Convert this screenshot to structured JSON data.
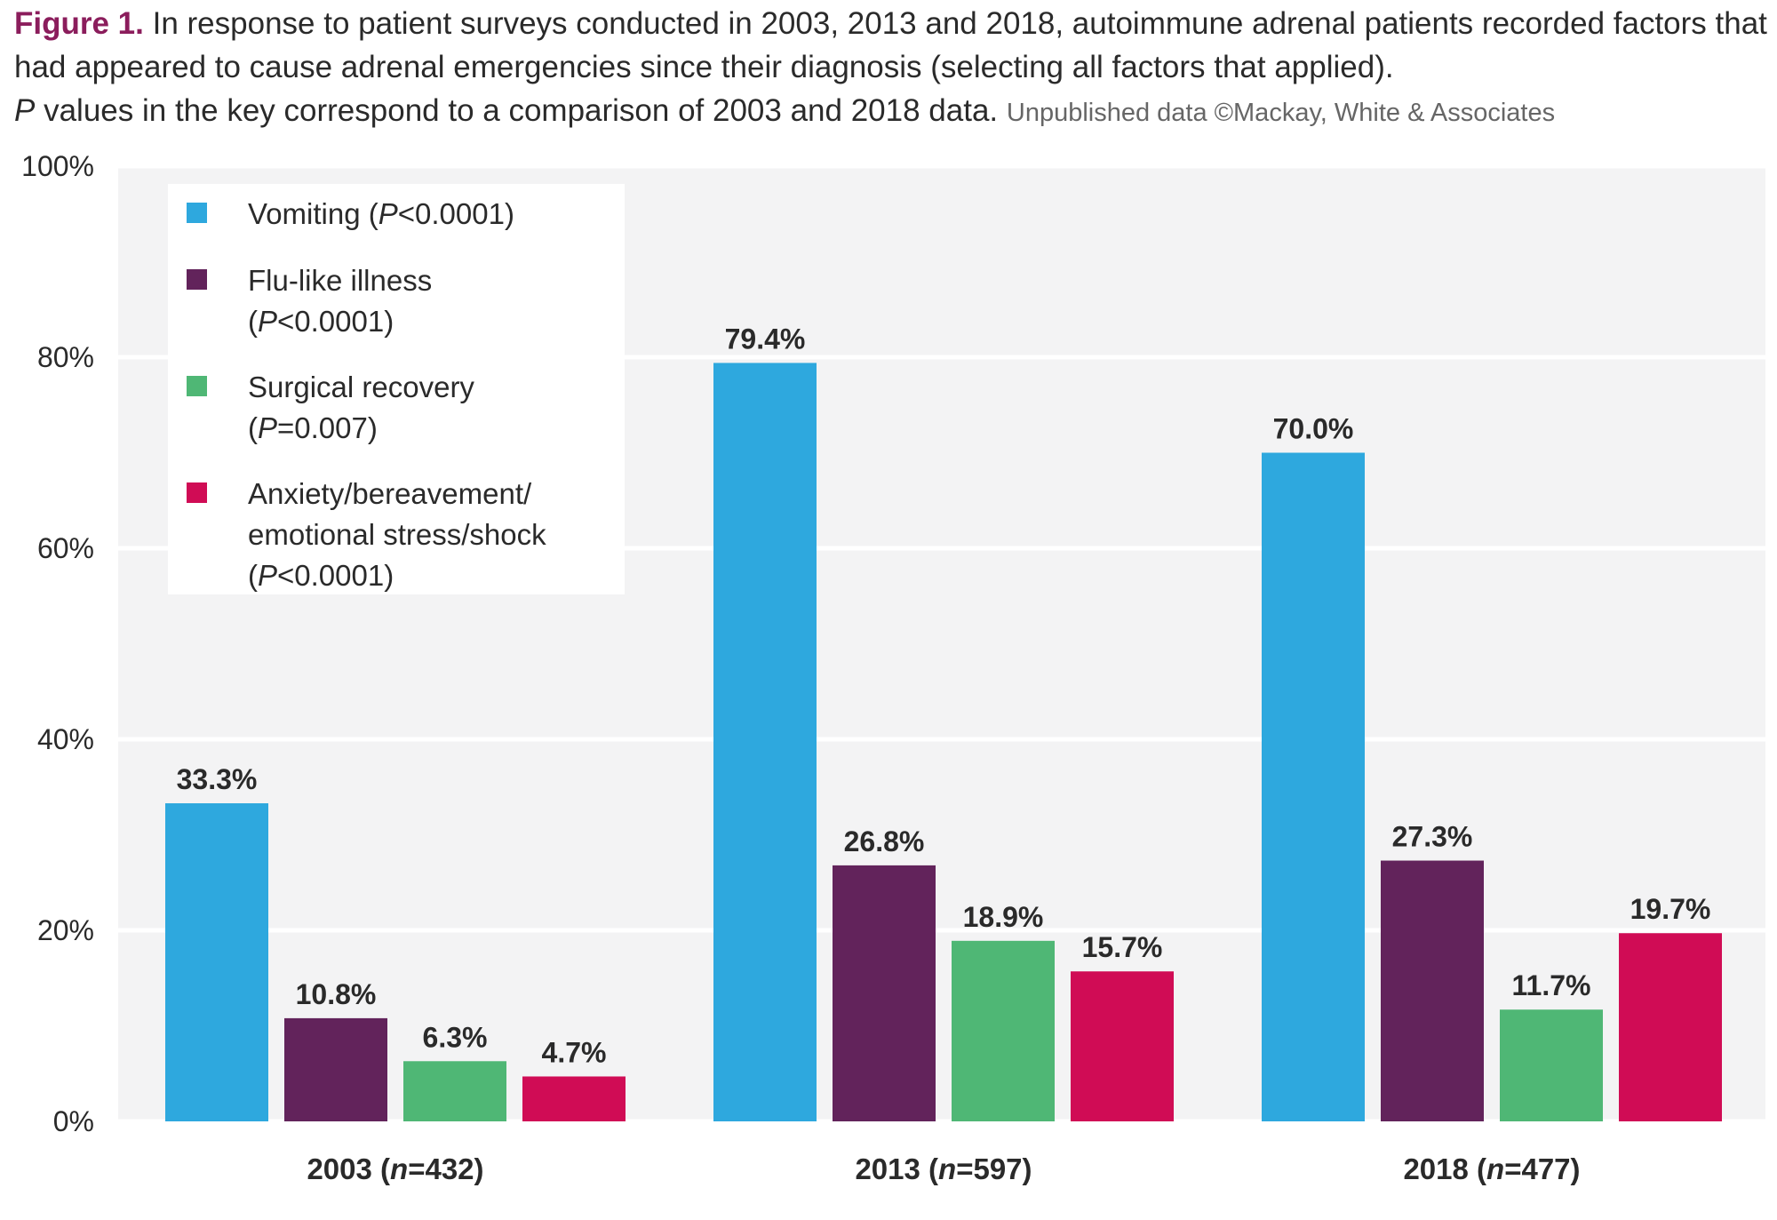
{
  "caption": {
    "figure_label": "Figure 1.",
    "text_part1": "In response to patient surveys conducted in 2003, 2013 and 2018, autoimmune adrenal patients recorded factors that had appeared to cause adrenal emergencies since their diagnosis (selecting all factors that applied).",
    "p_symbol": "P",
    "text_part2": "values in the key correspond to a comparison of 2003 and 2018 data.",
    "source": "Unpublished data ©Mackay, White & Associates"
  },
  "chart_data": {
    "type": "bar",
    "title": "",
    "xlabel": "",
    "ylabel": "",
    "ylim": [
      0,
      100
    ],
    "yticks": [
      0,
      20,
      40,
      60,
      80,
      100
    ],
    "ytick_labels": [
      "0%",
      "20%",
      "40%",
      "60%",
      "80%",
      "100%"
    ],
    "categories": [
      {
        "year": "2003",
        "n_prefix": "(",
        "n_symbol": "n",
        "n_suffix": "=432)"
      },
      {
        "year": "2013",
        "n_prefix": "(",
        "n_symbol": "n",
        "n_suffix": "=597)"
      },
      {
        "year": "2018",
        "n_prefix": "(",
        "n_symbol": "n",
        "n_suffix": "=477)"
      }
    ],
    "series": [
      {
        "name": "Vomiting",
        "legend_lines": [
          [
            "Vomiting (",
            "P",
            "<0.0001)"
          ]
        ],
        "color": "#2ea8de",
        "values": [
          33.3,
          79.4,
          70.0
        ],
        "labels": [
          "33.3%",
          "79.4%",
          "70.0%"
        ]
      },
      {
        "name": "Flu-like illness",
        "legend_lines": [
          [
            "Flu-like illness",
            "",
            ""
          ],
          [
            "(",
            "P",
            "<0.0001)"
          ]
        ],
        "color": "#62235b",
        "values": [
          10.8,
          26.8,
          27.3
        ],
        "labels": [
          "10.8%",
          "26.8%",
          "27.3%"
        ]
      },
      {
        "name": "Surgical recovery",
        "legend_lines": [
          [
            "Surgical recovery",
            "",
            ""
          ],
          [
            "(",
            "P",
            "=0.007)"
          ]
        ],
        "color": "#4fb775",
        "values": [
          6.3,
          18.9,
          11.7
        ],
        "labels": [
          "6.3%",
          "18.9%",
          "11.7%"
        ]
      },
      {
        "name": "Anxiety/bereavement/emotional stress/shock",
        "legend_lines": [
          [
            "Anxiety/bereavement/",
            "",
            ""
          ],
          [
            "emotional stress/shock",
            "",
            ""
          ],
          [
            "(",
            "P",
            "<0.0001)"
          ]
        ],
        "color": "#d00c55",
        "values": [
          4.7,
          15.7,
          19.7
        ],
        "labels": [
          "4.7%",
          "15.7%",
          "19.7%"
        ]
      }
    ],
    "grid": true,
    "legend_position": "top-left",
    "colors": {
      "plot_background": "#f3f3f4",
      "gridline": "#ffffff"
    }
  }
}
